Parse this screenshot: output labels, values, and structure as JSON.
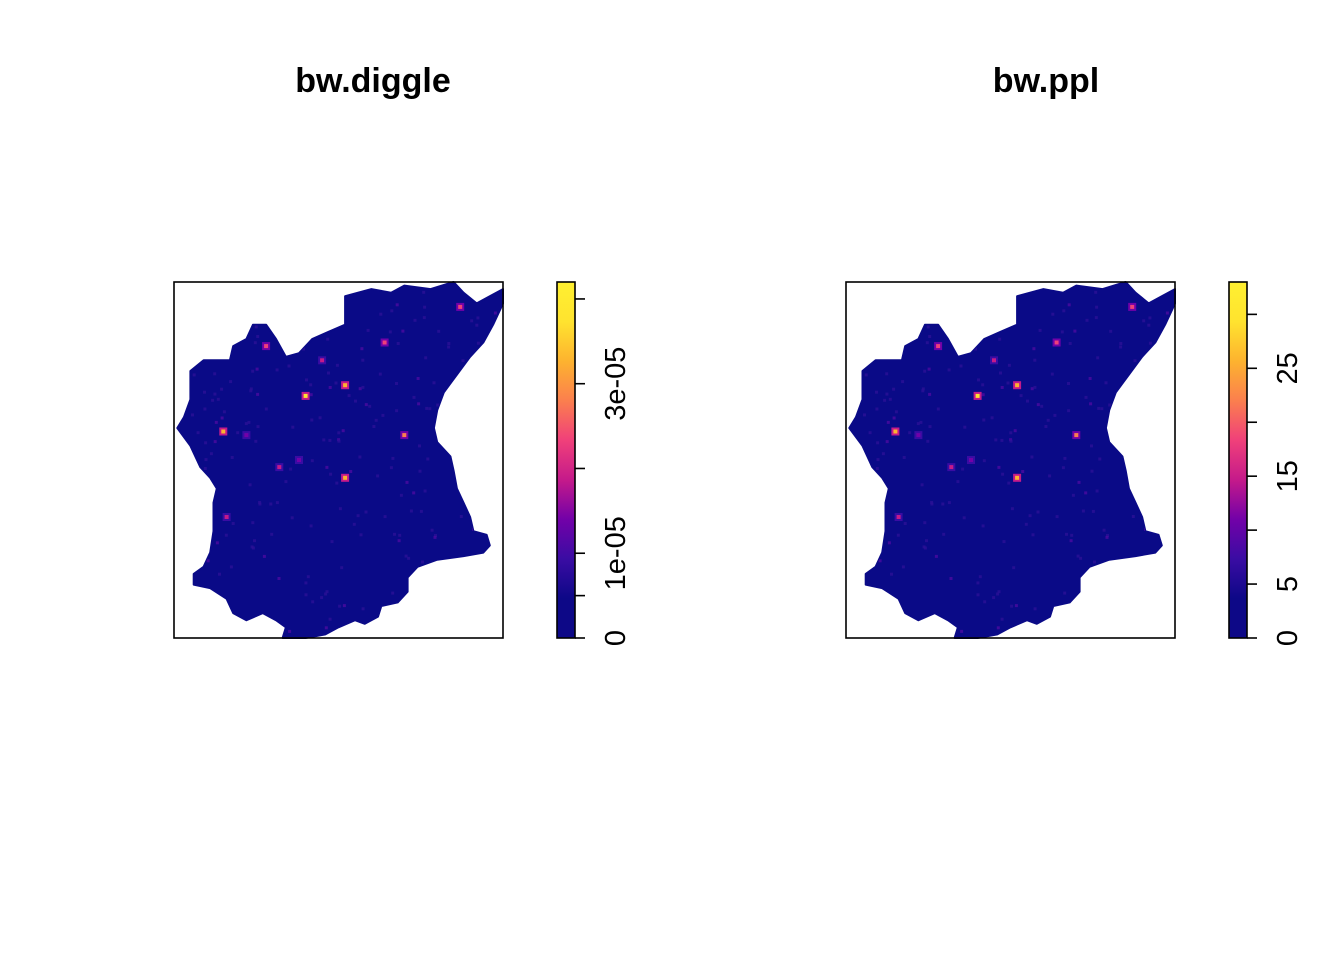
{
  "chart_data": [
    {
      "type": "heatmap",
      "title": "bw.diggle",
      "xlabel": "",
      "ylabel": "",
      "colorbar": {
        "range": [
          0,
          4.2e-05
        ],
        "ticks": [
          0,
          5e-06,
          1e-05,
          2e-05,
          3e-05,
          4e-05
        ],
        "tick_labels": [
          "0",
          "",
          "1e-05",
          "",
          "3e-05",
          ""
        ],
        "colors": [
          "#0d0887",
          "#0d0887",
          "#3a0ca3",
          "#7201a8",
          "#c51a8a",
          "#f0407a",
          "#fb7f4e",
          "#fdb32f",
          "#ffe32f",
          "#fff030"
        ]
      },
      "hotspots": [
        {
          "x": 0.28,
          "y": 0.82,
          "level": 0.55
        },
        {
          "x": 0.4,
          "y": 0.68,
          "level": 0.85
        },
        {
          "x": 0.52,
          "y": 0.71,
          "level": 0.75
        },
        {
          "x": 0.15,
          "y": 0.58,
          "level": 0.8
        },
        {
          "x": 0.7,
          "y": 0.57,
          "level": 0.7
        },
        {
          "x": 0.52,
          "y": 0.45,
          "level": 0.8
        },
        {
          "x": 0.64,
          "y": 0.83,
          "level": 0.55
        },
        {
          "x": 0.45,
          "y": 0.78,
          "level": 0.45
        },
        {
          "x": 0.87,
          "y": 0.93,
          "level": 0.6
        },
        {
          "x": 0.32,
          "y": 0.48,
          "level": 0.4
        },
        {
          "x": 0.16,
          "y": 0.34,
          "level": 0.4
        },
        {
          "x": 0.38,
          "y": 0.5,
          "level": 0.35
        },
        {
          "x": 0.22,
          "y": 0.57,
          "level": 0.35
        }
      ]
    },
    {
      "type": "heatmap",
      "title": "bw.ppl",
      "xlabel": "",
      "ylabel": "",
      "colorbar": {
        "range": [
          0,
          33
        ],
        "ticks": [
          0,
          5,
          10,
          15,
          20,
          25,
          30
        ],
        "tick_labels": [
          "0",
          "5",
          "",
          "15",
          "",
          "25",
          ""
        ],
        "colors": [
          "#0d0887",
          "#0d0887",
          "#3a0ca3",
          "#7201a8",
          "#c51a8a",
          "#f0407a",
          "#fb7f4e",
          "#fdb32f",
          "#ffe32f",
          "#fff030"
        ]
      },
      "hotspots": [
        {
          "x": 0.28,
          "y": 0.82,
          "level": 0.55
        },
        {
          "x": 0.4,
          "y": 0.68,
          "level": 0.85
        },
        {
          "x": 0.52,
          "y": 0.71,
          "level": 0.75
        },
        {
          "x": 0.15,
          "y": 0.58,
          "level": 0.8
        },
        {
          "x": 0.7,
          "y": 0.57,
          "level": 0.7
        },
        {
          "x": 0.52,
          "y": 0.45,
          "level": 0.8
        },
        {
          "x": 0.64,
          "y": 0.83,
          "level": 0.55
        },
        {
          "x": 0.45,
          "y": 0.78,
          "level": 0.45
        },
        {
          "x": 0.87,
          "y": 0.93,
          "level": 0.6
        },
        {
          "x": 0.32,
          "y": 0.48,
          "level": 0.4
        },
        {
          "x": 0.16,
          "y": 0.34,
          "level": 0.4
        },
        {
          "x": 0.38,
          "y": 0.5,
          "level": 0.35
        },
        {
          "x": 0.22,
          "y": 0.57,
          "level": 0.35
        }
      ]
    }
  ]
}
